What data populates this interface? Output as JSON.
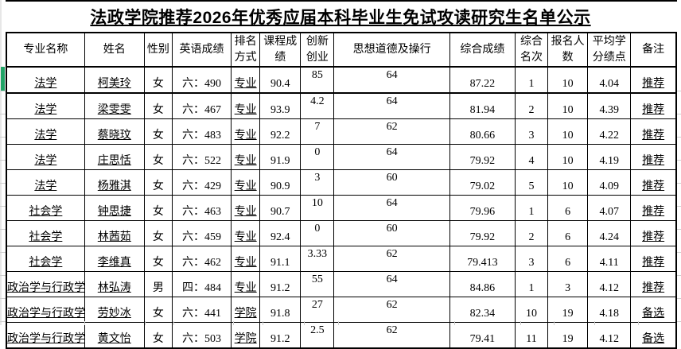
{
  "title": "法政学院推荐2026年优秀应届本科毕业生免试攻读研究生名单公示",
  "colors": {
    "border": "#000000",
    "selection_green": "#21a366",
    "gutter_gray": "#e7e7e7",
    "faint_gridline": "#cfcfcf"
  },
  "table": {
    "columns": [
      {
        "key": "major",
        "label": "专业名称"
      },
      {
        "key": "name",
        "label": "姓名"
      },
      {
        "key": "gender",
        "label": "性别"
      },
      {
        "key": "english-score",
        "label": "英语成绩"
      },
      {
        "key": "ranking-method",
        "label": "排名方式"
      },
      {
        "key": "course-score",
        "label": "课程成绩"
      },
      {
        "key": "innovation",
        "label": "创新创业"
      },
      {
        "key": "moral-conduct",
        "label": "思想道德及操行"
      },
      {
        "key": "comprehensive-score",
        "label": "综合成绩"
      },
      {
        "key": "comprehensive-rank",
        "label": "综合名次"
      },
      {
        "key": "applicant-count",
        "label": "报名人数"
      },
      {
        "key": "gpa",
        "label": "平均学分绩点"
      },
      {
        "key": "remark",
        "label": "备注"
      }
    ],
    "rows": [
      {
        "cells": [
          "法学",
          "柯美玲",
          "女",
          "六：490",
          "专业",
          "90.4",
          "85",
          "64",
          "87.22",
          "1",
          "10",
          "4.04",
          "推荐"
        ]
      },
      {
        "cells": [
          "法学",
          "梁雯雯",
          "女",
          "六：467",
          "专业",
          "93.9",
          "4.2",
          "64",
          "81.94",
          "2",
          "10",
          "4.39",
          "推荐"
        ]
      },
      {
        "cells": [
          "法学",
          "蔡晓玟",
          "女",
          "六：483",
          "专业",
          "92.2",
          "7",
          "62",
          "80.66",
          "3",
          "10",
          "4.22",
          "推荐"
        ]
      },
      {
        "cells": [
          "法学",
          "庄思恬",
          "女",
          "六：522",
          "专业",
          "91.9",
          "0",
          "64",
          "79.92",
          "4",
          "10",
          "4.19",
          "推荐"
        ]
      },
      {
        "cells": [
          "法学",
          "杨雅淇",
          "女",
          "六：429",
          "专业",
          "90.9",
          "3",
          "60",
          "79.02",
          "5",
          "10",
          "4.09",
          "推荐"
        ]
      },
      {
        "cells": [
          "社会学",
          "钟思捷",
          "女",
          "六：463",
          "专业",
          "90.7",
          "10",
          "64",
          "79.96",
          "1",
          "6",
          "4.07",
          "推荐"
        ]
      },
      {
        "cells": [
          "社会学",
          "林茜茹",
          "女",
          "六：459",
          "专业",
          "92.4",
          "0",
          "60",
          "79.92",
          "2",
          "6",
          "4.24",
          "推荐"
        ]
      },
      {
        "cells": [
          "社会学",
          "李维真",
          "女",
          "六：462",
          "专业",
          "91.1",
          "3.33",
          "62",
          "79.413",
          "3",
          "6",
          "4.11",
          "推荐"
        ]
      },
      {
        "cells": [
          "政治学与行政学",
          "林弘涛",
          "男",
          "四：484",
          "专业",
          "91.2",
          "55",
          "64",
          "84.86",
          "1",
          "3",
          "4.12",
          "推荐"
        ]
      },
      {
        "cells": [
          "政治学与行政学",
          "劳妙冰",
          "女",
          "六：441",
          "学院",
          "91.8",
          "27",
          "62",
          "82.34",
          "10",
          "19",
          "4.18",
          "备选"
        ]
      },
      {
        "cells": [
          "政治学与行政学",
          "黄文怡",
          "女",
          "六：503",
          "学院",
          "91.2",
          "2.5",
          "62",
          "79.41",
          "11",
          "19",
          "4.12",
          "备选"
        ]
      }
    ]
  }
}
